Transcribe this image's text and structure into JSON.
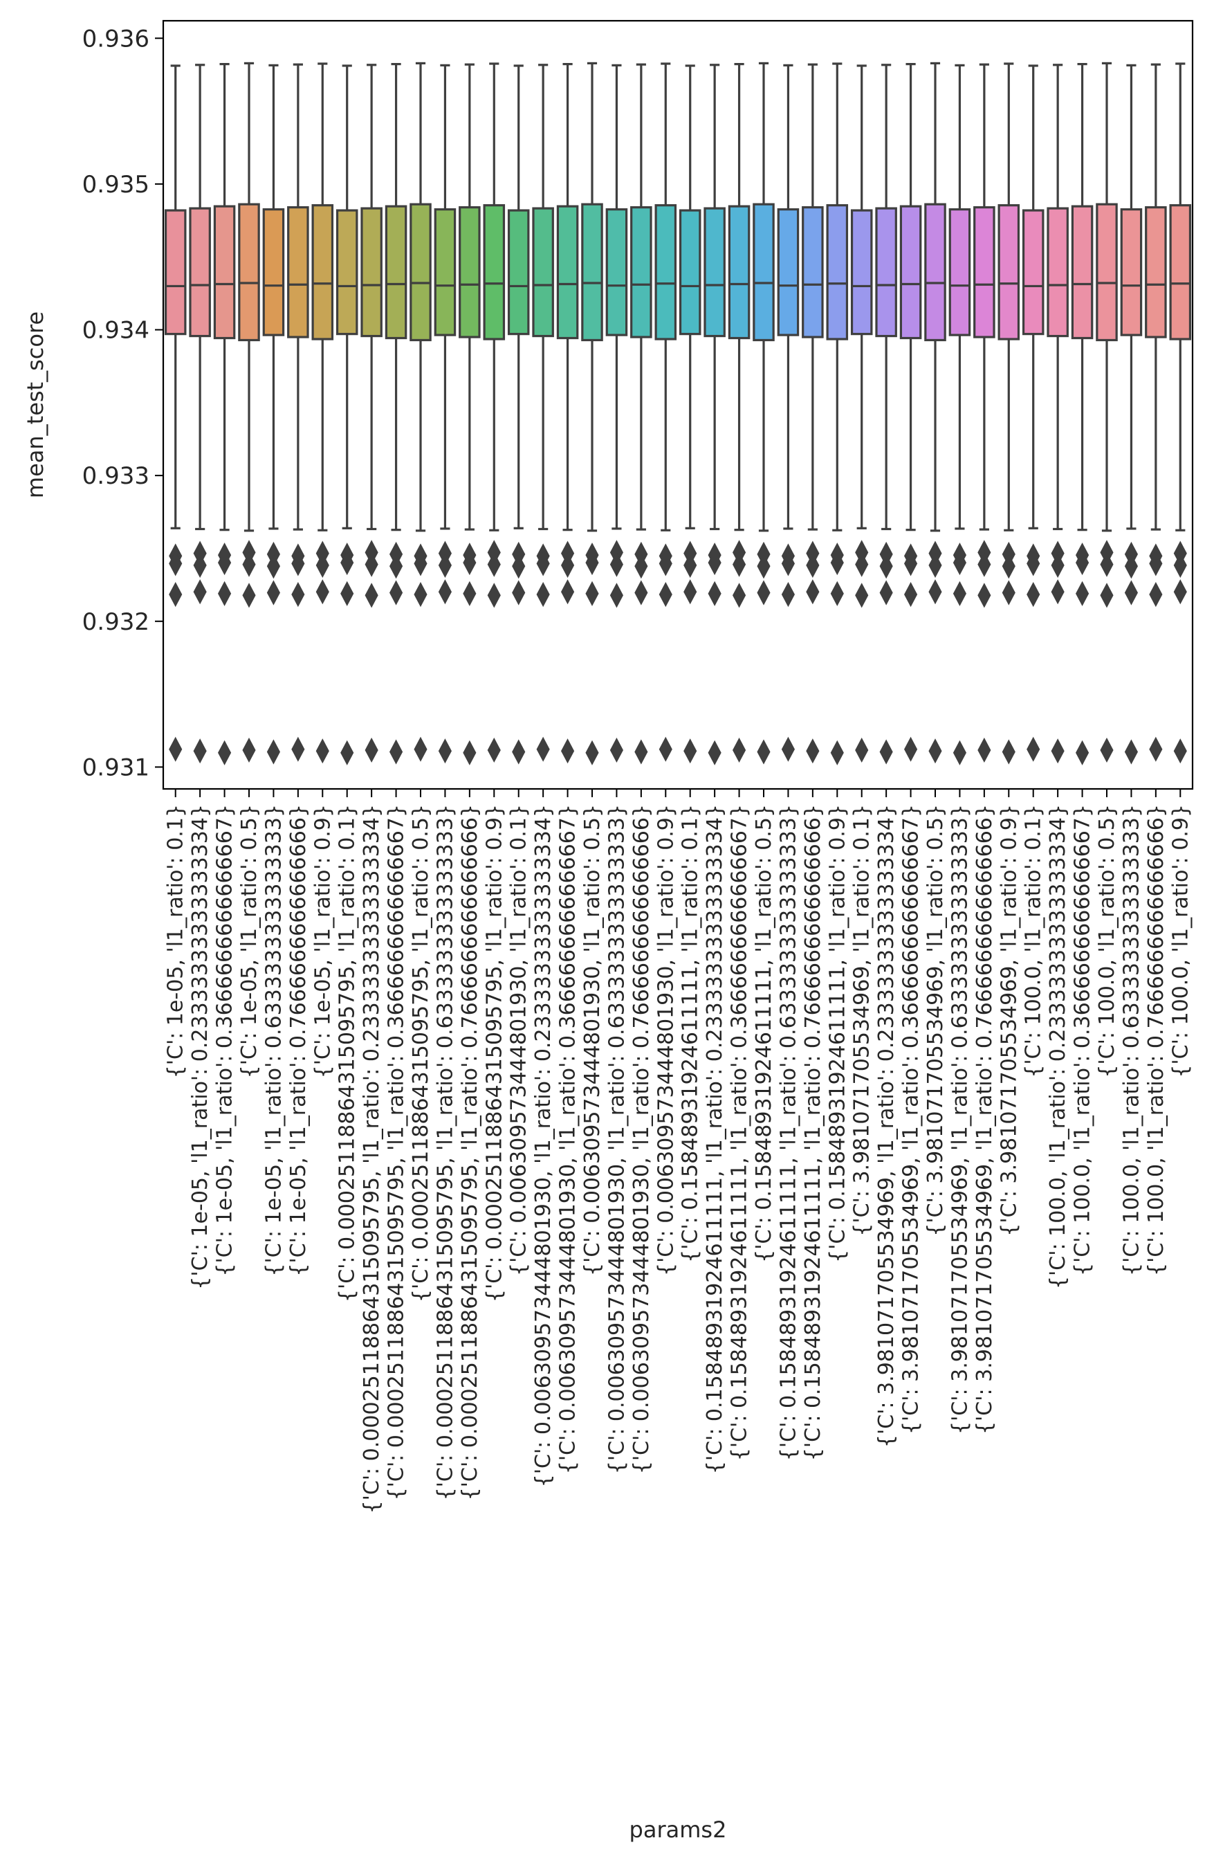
{
  "chart_data": {
    "type": "box",
    "title": "",
    "xlabel": "params2",
    "ylabel": "mean_test_score",
    "ylim": [
      0.93085,
      0.93612
    ],
    "yticks": [
      0.931,
      0.932,
      0.933,
      0.934,
      0.935,
      0.936
    ],
    "ytick_labels": [
      "0.931",
      "0.932",
      "0.933",
      "0.934",
      "0.935",
      "0.936"
    ],
    "grid": false,
    "legend": "none",
    "box_stats": {
      "whisker_high": 0.93582,
      "q3": 0.93484,
      "median": 0.93431,
      "q1": 0.93395,
      "whisker_low": 0.93263
    },
    "outlier_values": [
      0.93246,
      0.93239,
      0.93219,
      0.93111
    ],
    "categories": [
      "{'C': 1e-05, 'l1_ratio': 0.1}",
      "{'C': 1e-05, 'l1_ratio': 0.23333333333333334}",
      "{'C': 1e-05, 'l1_ratio': 0.3666666666666667}",
      "{'C': 1e-05, 'l1_ratio': 0.5}",
      "{'C': 1e-05, 'l1_ratio': 0.6333333333333333}",
      "{'C': 1e-05, 'l1_ratio': 0.7666666666666666}",
      "{'C': 1e-05, 'l1_ratio': 0.9}",
      "{'C': 0.00025118864315095795, 'l1_ratio': 0.1}",
      "{'C': 0.00025118864315095795, 'l1_ratio': 0.23333333333333334}",
      "{'C': 0.00025118864315095795, 'l1_ratio': 0.3666666666666667}",
      "{'C': 0.00025118864315095795, 'l1_ratio': 0.5}",
      "{'C': 0.00025118864315095795, 'l1_ratio': 0.6333333333333333}",
      "{'C': 0.00025118864315095795, 'l1_ratio': 0.7666666666666666}",
      "{'C': 0.00025118864315095795, 'l1_ratio': 0.9}",
      "{'C': 0.006309573444801930, 'l1_ratio': 0.1}",
      "{'C': 0.006309573444801930, 'l1_ratio': 0.23333333333333334}",
      "{'C': 0.006309573444801930, 'l1_ratio': 0.3666666666666667}",
      "{'C': 0.006309573444801930, 'l1_ratio': 0.5}",
      "{'C': 0.006309573444801930, 'l1_ratio': 0.6333333333333333}",
      "{'C': 0.006309573444801930, 'l1_ratio': 0.7666666666666666}",
      "{'C': 0.006309573444801930, 'l1_ratio': 0.9}",
      "{'C': 0.15848931924611111, 'l1_ratio': 0.1}",
      "{'C': 0.15848931924611111, 'l1_ratio': 0.23333333333333334}",
      "{'C': 0.15848931924611111, 'l1_ratio': 0.3666666666666667}",
      "{'C': 0.15848931924611111, 'l1_ratio': 0.5}",
      "{'C': 0.15848931924611111, 'l1_ratio': 0.6333333333333333}",
      "{'C': 0.15848931924611111, 'l1_ratio': 0.7666666666666666}",
      "{'C': 0.15848931924611111, 'l1_ratio': 0.9}",
      "{'C': 3.981071705534969, 'l1_ratio': 0.1}",
      "{'C': 3.981071705534969, 'l1_ratio': 0.23333333333333334}",
      "{'C': 3.981071705534969, 'l1_ratio': 0.3666666666666667}",
      "{'C': 3.981071705534969, 'l1_ratio': 0.5}",
      "{'C': 3.981071705534969, 'l1_ratio': 0.6333333333333333}",
      "{'C': 3.981071705534969, 'l1_ratio': 0.7666666666666666}",
      "{'C': 3.981071705534969, 'l1_ratio': 0.9}",
      "{'C': 100.0, 'l1_ratio': 0.1}",
      "{'C': 100.0, 'l1_ratio': 0.23333333333333334}",
      "{'C': 100.0, 'l1_ratio': 0.3666666666666667}",
      "{'C': 100.0, 'l1_ratio': 0.5}",
      "{'C': 100.0, 'l1_ratio': 0.6333333333333333}",
      "{'C': 100.0, 'l1_ratio': 0.7666666666666666}",
      "{'C': 100.0, 'l1_ratio': 0.9}"
    ],
    "colors": [
      "#e8919b",
      "#e7959a",
      "#e5968d",
      "#e3996f",
      "#da9a55",
      "#d1a155",
      "#c7a455",
      "#bda957",
      "#b0ac56",
      "#a3af56",
      "#97b257",
      "#88b559",
      "#73b95f",
      "#5fbd68",
      "#56bc7d",
      "#54bc8c",
      "#52bd97",
      "#51bda1",
      "#4fbcaa",
      "#4dbbb4",
      "#4bbbbc",
      "#4cbac5",
      "#4fb7cd",
      "#53b4d6",
      "#5aafe0",
      "#66a9e8",
      "#7aa3ec",
      "#8c9ded",
      "#9b98ed",
      "#a993ec",
      "#b78ee9",
      "#c48ae4",
      "#d187de",
      "#dc85d7",
      "#e388cb",
      "#e98bbc",
      "#eb8eb0",
      "#eb91a6",
      "#eb939c",
      "#eb9496",
      "#ea9592",
      "#ea9490"
    ],
    "line_color": "#3f3f3f"
  }
}
